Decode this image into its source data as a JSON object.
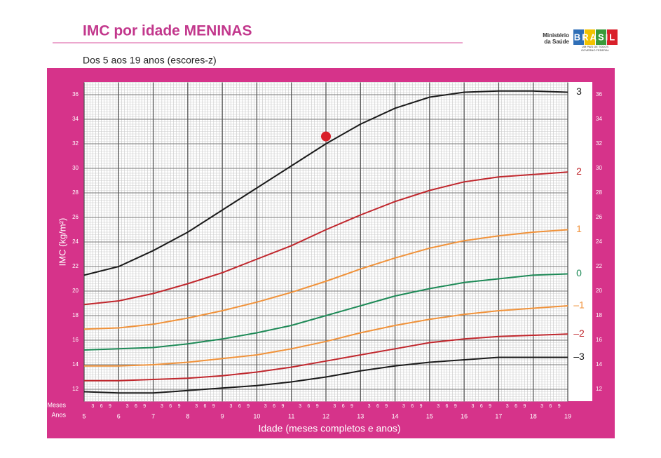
{
  "chart_data": {
    "type": "line",
    "title": "IMC por idade MENINAS",
    "subtitle": "Dos 5 aos 19 anos (escores-z)",
    "y_label": "IMC (kg/m²)",
    "x_label": "Idade (meses completos e anos)",
    "x_row_labels": [
      "Meses",
      "Anos"
    ],
    "month_labels": [
      "3",
      "6",
      "9"
    ],
    "x": [
      5,
      6,
      7,
      8,
      9,
      10,
      11,
      12,
      13,
      14,
      15,
      16,
      17,
      18,
      19
    ],
    "xlim": [
      5,
      19
    ],
    "xticks": [
      5,
      6,
      7,
      8,
      9,
      10,
      11,
      12,
      13,
      14,
      15,
      16,
      17,
      18,
      19
    ],
    "ylim": [
      11,
      37
    ],
    "yticks": [
      12,
      14,
      16,
      18,
      20,
      22,
      24,
      26,
      28,
      30,
      32,
      34,
      36
    ],
    "grid": true,
    "series": [
      {
        "name": "3",
        "color": "#1a1a1a",
        "values": [
          21.3,
          22.0,
          23.3,
          24.8,
          26.6,
          28.4,
          30.2,
          32.0,
          33.6,
          34.9,
          35.8,
          36.2,
          36.3,
          36.3,
          36.2
        ]
      },
      {
        "name": "2",
        "color": "#c0272d",
        "values": [
          18.9,
          19.2,
          19.8,
          20.6,
          21.5,
          22.6,
          23.7,
          25.0,
          26.2,
          27.3,
          28.2,
          28.9,
          29.3,
          29.5,
          29.7
        ]
      },
      {
        "name": "1",
        "color": "#f0923a",
        "values": [
          16.9,
          17.0,
          17.3,
          17.8,
          18.4,
          19.1,
          19.9,
          20.8,
          21.8,
          22.7,
          23.5,
          24.1,
          24.5,
          24.8,
          25.0
        ]
      },
      {
        "name": "0",
        "color": "#1e8a57",
        "values": [
          15.2,
          15.3,
          15.4,
          15.7,
          16.1,
          16.6,
          17.2,
          18.0,
          18.8,
          19.6,
          20.2,
          20.7,
          21.0,
          21.3,
          21.4
        ]
      },
      {
        "name": "–1",
        "color": "#f0923a",
        "values": [
          13.9,
          13.9,
          14.0,
          14.2,
          14.5,
          14.8,
          15.3,
          15.9,
          16.6,
          17.2,
          17.7,
          18.1,
          18.4,
          18.6,
          18.8
        ]
      },
      {
        "name": "–2",
        "color": "#c0272d",
        "values": [
          12.7,
          12.7,
          12.8,
          12.9,
          13.1,
          13.4,
          13.8,
          14.3,
          14.8,
          15.3,
          15.8,
          16.1,
          16.3,
          16.4,
          16.5
        ]
      },
      {
        "name": "–3",
        "color": "#1a1a1a",
        "values": [
          11.8,
          11.7,
          11.7,
          11.9,
          12.1,
          12.3,
          12.6,
          13.0,
          13.5,
          13.9,
          14.2,
          14.4,
          14.6,
          14.6,
          14.6
        ]
      }
    ],
    "marker": {
      "x": 12,
      "y": 32.6,
      "color": "#d9202a"
    }
  },
  "logo": {
    "ministry": [
      "Ministério",
      "da Saúde"
    ],
    "brand": "BRASIL",
    "motto": "UM PAÍS DE TODOS",
    "government": "GOVERNO FEDERAL"
  }
}
